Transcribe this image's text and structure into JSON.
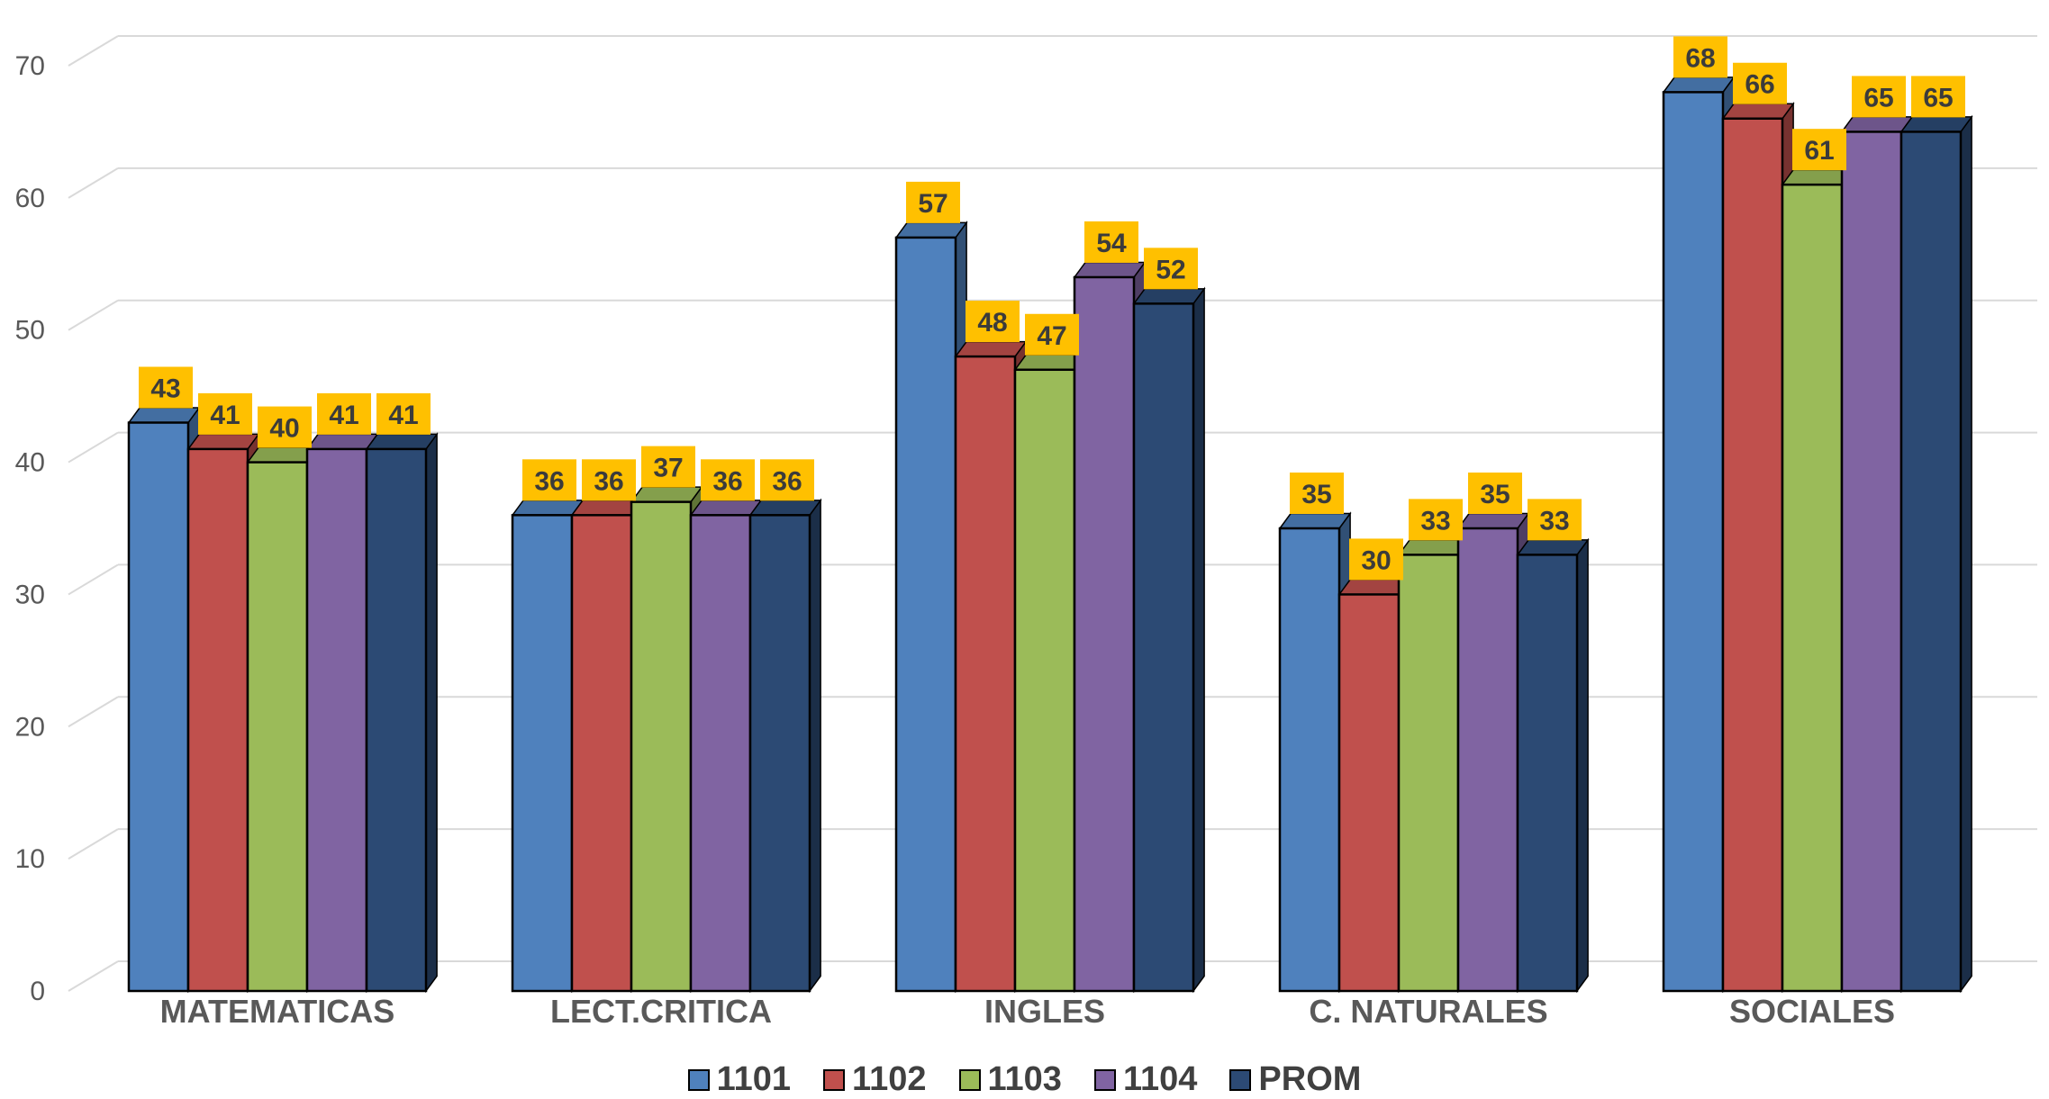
{
  "chart_data": {
    "type": "bar",
    "title": "",
    "xlabel": "",
    "ylabel": "",
    "ylim": [
      0,
      70
    ],
    "yticks": [
      0,
      10,
      20,
      30,
      40,
      50,
      60,
      70
    ],
    "grid": true,
    "legend_position": "bottom",
    "label_background": "#FFC000",
    "categories": [
      "MATEMATICAS",
      "LECT.CRITICA",
      "INGLES",
      "C. NATURALES",
      "SOCIALES"
    ],
    "series": [
      {
        "name": "1101",
        "color": "#4F81BD",
        "values": [
          43,
          36,
          57,
          35,
          68
        ]
      },
      {
        "name": "1102",
        "color": "#C0504D",
        "values": [
          41,
          36,
          48,
          30,
          66
        ]
      },
      {
        "name": "1103",
        "color": "#9BBB59",
        "values": [
          40,
          37,
          47,
          33,
          61
        ]
      },
      {
        "name": "1104",
        "color": "#8064A2",
        "values": [
          41,
          36,
          54,
          35,
          65
        ]
      },
      {
        "name": "PROM",
        "color": "#2C4A74",
        "values": [
          41,
          36,
          52,
          33,
          65
        ]
      }
    ]
  }
}
